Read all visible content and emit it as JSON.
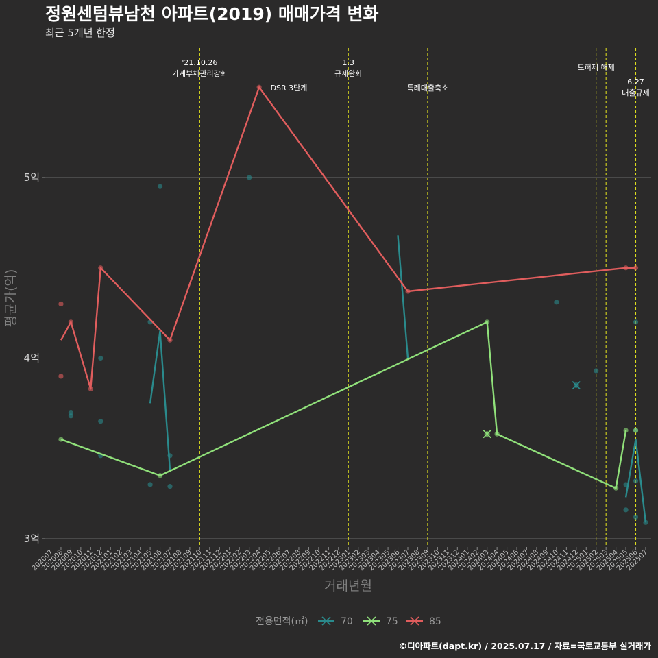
{
  "chart_data": {
    "type": "line",
    "title": "정원센텀뷰남천 아파트(2019) 매매가격 변화",
    "subtitle": "최근 5개년 한정",
    "xlabel": "거래년월",
    "ylabel": "평균가(억)",
    "categories": [
      "202007",
      "202008",
      "202009",
      "202010",
      "202011",
      "202012",
      "202101",
      "202102",
      "202103",
      "202104",
      "202105",
      "202106",
      "202107",
      "202108",
      "202109",
      "202110",
      "202111",
      "202112",
      "202201",
      "202202",
      "202203",
      "202204",
      "202205",
      "202206",
      "202207",
      "202208",
      "202209",
      "202210",
      "202211",
      "202212",
      "202301",
      "202302",
      "202303",
      "202304",
      "202305",
      "202306",
      "202307",
      "202308",
      "202309",
      "202310",
      "202311",
      "202312",
      "202401",
      "202402",
      "202403",
      "202404",
      "202405",
      "202406",
      "202407",
      "202408",
      "202409",
      "202410",
      "202411",
      "202412",
      "202501",
      "202502",
      "202503",
      "202504",
      "202505",
      "202506",
      "202507"
    ],
    "yticks": [
      {
        "value": 3,
        "label": "3억"
      },
      {
        "value": 4,
        "label": "4억"
      },
      {
        "value": 5,
        "label": "5억"
      }
    ],
    "ylim": [
      2.95,
      5.75
    ],
    "grid": true,
    "legend": {
      "title": "전용면적(㎡)",
      "position": "bottom"
    },
    "series": [
      {
        "name": "70",
        "color": "#2a8a8c",
        "line": [
          [
            "202105",
            3.75
          ],
          [
            "202106",
            4.15
          ],
          [
            "202107",
            3.38
          ]
        ],
        "line2": [
          [
            "202306",
            4.68
          ],
          [
            "202307",
            4.0
          ]
        ],
        "line3": [
          [
            "202505",
            3.23
          ],
          [
            "202506",
            3.55
          ],
          [
            "202507",
            3.09
          ]
        ],
        "points": [
          [
            "202009",
            3.7
          ],
          [
            "202009",
            3.68
          ],
          [
            "202012",
            4.0
          ],
          [
            "202012",
            3.65
          ],
          [
            "202012",
            3.46
          ],
          [
            "202105",
            4.2
          ],
          [
            "202105",
            3.3
          ],
          [
            "202106",
            4.95
          ],
          [
            "202107",
            3.46
          ],
          [
            "202107",
            3.29
          ],
          [
            "202203",
            5.0
          ],
          [
            "202410",
            4.31
          ],
          [
            "202502",
            3.93
          ],
          [
            "202505",
            3.3
          ],
          [
            "202505",
            3.16
          ],
          [
            "202506",
            4.2
          ],
          [
            "202506",
            3.6
          ],
          [
            "202506",
            3.32
          ],
          [
            "202506",
            3.12
          ],
          [
            "202507",
            3.09
          ]
        ],
        "crosses": [
          [
            "202412",
            3.85
          ]
        ]
      },
      {
        "name": "75",
        "color": "#90e07a",
        "line": [
          [
            "202008",
            3.55
          ],
          [
            "202106",
            3.35
          ],
          [
            "202403",
            4.2
          ],
          [
            "202404",
            3.58
          ],
          [
            "202504",
            3.28
          ],
          [
            "202505",
            3.6
          ]
        ],
        "points": [
          [
            "202008",
            3.55
          ],
          [
            "202106",
            3.35
          ],
          [
            "202403",
            4.2
          ],
          [
            "202404",
            3.58
          ],
          [
            "202504",
            3.28
          ],
          [
            "202505",
            3.6
          ],
          [
            "202506",
            3.6
          ]
        ],
        "crosses": [
          [
            "202403",
            3.58
          ]
        ]
      },
      {
        "name": "85",
        "color": "#e05d5d",
        "line": [
          [
            "202008",
            4.1
          ],
          [
            "202009",
            4.2
          ],
          [
            "202011",
            3.83
          ],
          [
            "202012",
            4.5
          ],
          [
            "202107",
            4.1
          ],
          [
            "202204",
            5.5
          ],
          [
            "202307",
            4.37
          ],
          [
            "202505",
            4.5
          ],
          [
            "202506",
            4.5
          ]
        ],
        "points": [
          [
            "202008",
            4.3
          ],
          [
            "202008",
            3.9
          ],
          [
            "202009",
            4.2
          ],
          [
            "202011",
            3.83
          ],
          [
            "202012",
            4.5
          ],
          [
            "202107",
            4.1
          ],
          [
            "202204",
            5.5
          ],
          [
            "202307",
            4.37
          ],
          [
            "202505",
            4.5
          ],
          [
            "202506",
            4.5
          ]
        ]
      }
    ],
    "events": [
      {
        "x": "202110",
        "lines": [
          "'21.10.26",
          "가계부채관리강화"
        ],
        "row": 0
      },
      {
        "x": "202207",
        "lines": [
          "DSR 3단계"
        ],
        "row": 1
      },
      {
        "x": "202301",
        "lines": [
          "1.3",
          "규제완화"
        ],
        "row": 0
      },
      {
        "x": "202309",
        "lines": [
          "특례대출축소"
        ],
        "row": 1
      },
      {
        "x": "202502",
        "lines": [
          "토허제 해제"
        ],
        "row": 2
      },
      {
        "x": "202503",
        "lines": [],
        "row": 2
      },
      {
        "x": "202506",
        "lines": [
          "6.27",
          "대출규제"
        ],
        "row": 3
      }
    ],
    "caption": "©디아파트(dapt.kr) / 2025.07.17 / 자료=국토교통부 실거래가"
  }
}
